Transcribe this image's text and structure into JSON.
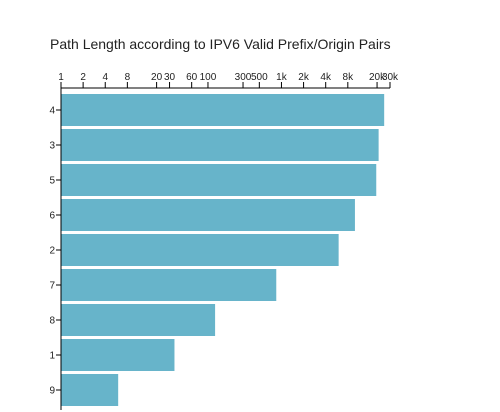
{
  "chart_data": {
    "type": "bar",
    "orientation": "horizontal",
    "title": "Path Length according to IPV6 Valid Prefix/Origin Pairs",
    "xlabel": "",
    "ylabel": "",
    "x_scale": "log",
    "x_axis_position": "top",
    "xlim": [
      1,
      30000
    ],
    "x_ticks": [
      1,
      2,
      4,
      8,
      20,
      30,
      60,
      100,
      300,
      500,
      1000,
      2000,
      4000,
      8000,
      20000,
      30000
    ],
    "x_tick_labels": [
      "1",
      "2",
      "4",
      "8",
      "20",
      "30",
      "60",
      "100",
      "300",
      "500",
      "1k",
      "2k",
      "4k",
      "8k",
      "20k",
      "30k"
    ],
    "categories": [
      "4",
      "3",
      "5",
      "6",
      "2",
      "7",
      "8",
      "1",
      "9"
    ],
    "values": [
      25000,
      21000,
      19500,
      10000,
      6000,
      850,
      125,
      35,
      6
    ],
    "grid": false,
    "legend": "none",
    "bar_color": "#67b4ca"
  }
}
